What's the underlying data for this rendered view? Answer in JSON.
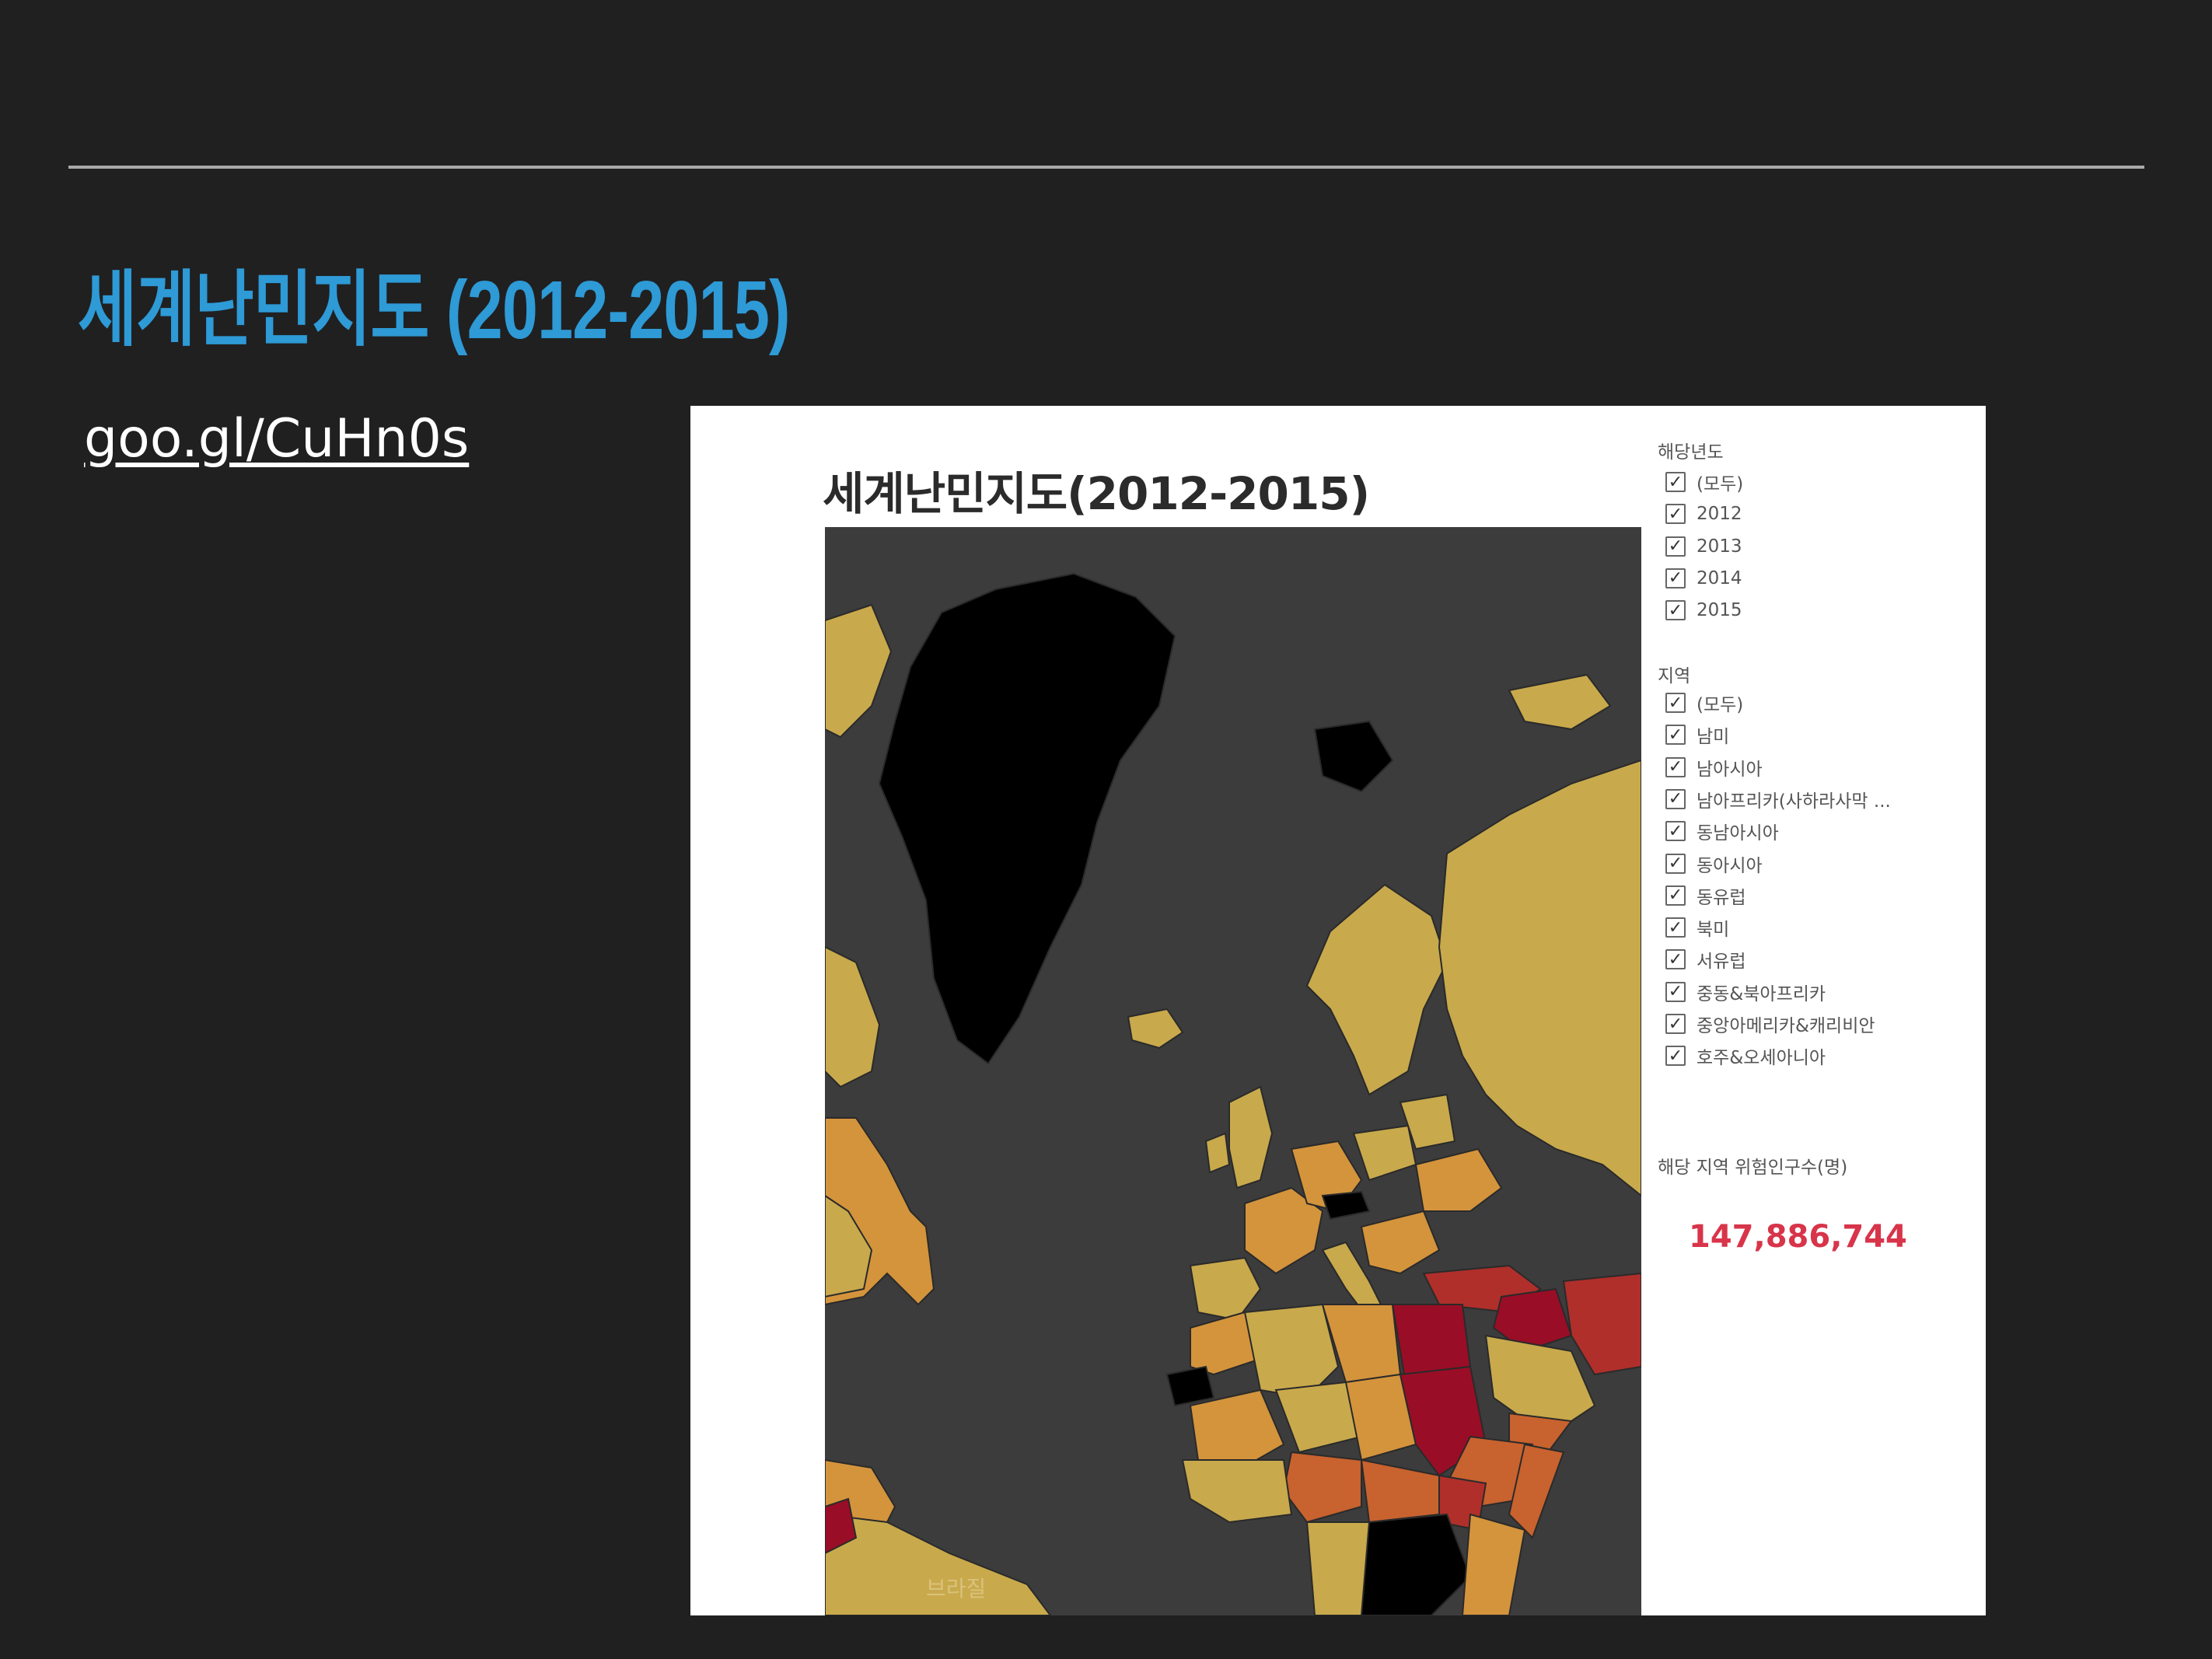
{
  "slide": {
    "title": "세계난민지도 (2012-2015)",
    "link": "goo.gl/CuHn0s",
    "colors": {
      "background": "#202021",
      "title": "#2e9ad6",
      "link": "#ffffff",
      "rule": "#a9a9a9"
    }
  },
  "map_panel": {
    "title": "세계난민지도(2012-2015)",
    "map_label": "브라질",
    "colors": {
      "ocean": "#3c3c3c",
      "no_data": "#000000",
      "level_1": "#c8a94c",
      "level_2": "#d4943c",
      "level_3": "#c8622e",
      "level_4": "#b02f2a",
      "level_5": "#9a0d26"
    }
  },
  "legend": {
    "year_heading": "해당년도",
    "years": [
      {
        "label": "(모두)",
        "checked": true
      },
      {
        "label": "2012",
        "checked": true
      },
      {
        "label": "2013",
        "checked": true
      },
      {
        "label": "2014",
        "checked": true
      },
      {
        "label": "2015",
        "checked": true
      }
    ],
    "region_heading": "지역",
    "regions": [
      {
        "label": "(모두)",
        "checked": true
      },
      {
        "label": "남미",
        "checked": true
      },
      {
        "label": "남아시아",
        "checked": true
      },
      {
        "label": "남아프리카(사하라사막 ...",
        "checked": true
      },
      {
        "label": "동남아시아",
        "checked": true
      },
      {
        "label": "동아시아",
        "checked": true
      },
      {
        "label": "동유럽",
        "checked": true
      },
      {
        "label": "북미",
        "checked": true
      },
      {
        "label": "서유럽",
        "checked": true
      },
      {
        "label": "중동&북아프리카",
        "checked": true
      },
      {
        "label": "중앙아메리카&캐리비안",
        "checked": true
      },
      {
        "label": "호주&오세아니아",
        "checked": true
      }
    ],
    "total_heading": "해당 지역 위험인구수(명)",
    "total_value": "147,886,744",
    "total_color": "#d8344a"
  }
}
